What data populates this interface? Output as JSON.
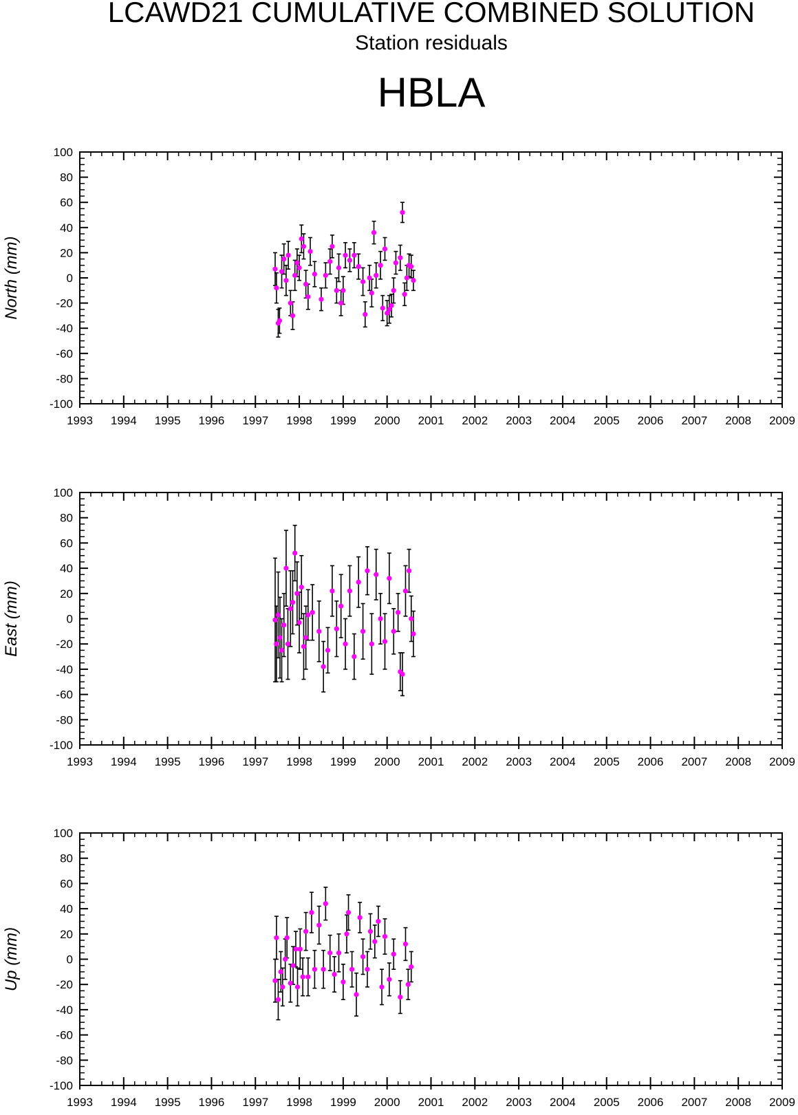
{
  "header": {
    "title": "LCAWD21 CUMULATIVE COMBINED SOLUTION",
    "subtitle": "Station residuals",
    "station": "HBLA"
  },
  "colors": {
    "point": "#ff00ff",
    "errorbar": "#000000",
    "axis": "#000000"
  },
  "chart_data": [
    {
      "type": "scatter",
      "name": "north",
      "ylabel": "North (mm)",
      "xlim": [
        1993,
        2009
      ],
      "ylim": [
        -100,
        100
      ],
      "xticks": [
        "1993",
        "1994",
        "1995",
        "1996",
        "1997",
        "1998",
        "1999",
        "2000",
        "2001",
        "2002",
        "2003",
        "2004",
        "2005",
        "2006",
        "2007",
        "2008",
        "2009"
      ],
      "yticks": [
        "100",
        "80",
        "60",
        "40",
        "20",
        "0",
        "-20",
        "-40",
        "-60",
        "-80",
        "-100"
      ],
      "points": [
        [
          1997.45,
          7,
          13
        ],
        [
          1997.48,
          -8,
          12
        ],
        [
          1997.52,
          -36,
          11
        ],
        [
          1997.55,
          -34,
          10
        ],
        [
          1997.6,
          5,
          13
        ],
        [
          1997.65,
          15,
          12
        ],
        [
          1997.7,
          -2,
          12
        ],
        [
          1997.75,
          18,
          11
        ],
        [
          1997.8,
          -20,
          10
        ],
        [
          1997.85,
          -30,
          11
        ],
        [
          1997.9,
          2,
          12
        ],
        [
          1997.95,
          12,
          11
        ],
        [
          1998.0,
          8,
          10
        ],
        [
          1998.05,
          31,
          11
        ],
        [
          1998.1,
          25,
          10
        ],
        [
          1998.15,
          -5,
          11
        ],
        [
          1998.2,
          -15,
          10
        ],
        [
          1998.25,
          21,
          11
        ],
        [
          1998.35,
          3,
          10
        ],
        [
          1998.5,
          -17,
          9
        ],
        [
          1998.6,
          2,
          10
        ],
        [
          1998.7,
          13,
          10
        ],
        [
          1998.75,
          25,
          9
        ],
        [
          1998.85,
          -10,
          10
        ],
        [
          1998.9,
          8,
          11
        ],
        [
          1998.95,
          -20,
          10
        ],
        [
          1999.0,
          -10,
          11
        ],
        [
          1999.05,
          18,
          10
        ],
        [
          1999.15,
          14,
          9
        ],
        [
          1999.25,
          18,
          10
        ],
        [
          1999.35,
          9,
          10
        ],
        [
          1999.45,
          -3,
          11
        ],
        [
          1999.5,
          -29,
          10
        ],
        [
          1999.6,
          0,
          10
        ],
        [
          1999.65,
          -12,
          11
        ],
        [
          1999.7,
          36,
          9
        ],
        [
          1999.75,
          2,
          10
        ],
        [
          1999.85,
          10,
          11
        ],
        [
          1999.9,
          -24,
          10
        ],
        [
          1999.95,
          23,
          9
        ],
        [
          2000.0,
          -28,
          10
        ],
        [
          2000.05,
          -25,
          11
        ],
        [
          2000.1,
          -22,
          9
        ],
        [
          2000.15,
          -10,
          10
        ],
        [
          2000.2,
          12,
          9
        ],
        [
          2000.3,
          16,
          10
        ],
        [
          2000.35,
          52,
          8
        ],
        [
          2000.4,
          -13,
          9
        ],
        [
          2000.45,
          0,
          10
        ],
        [
          2000.5,
          10,
          9
        ],
        [
          2000.55,
          9,
          9
        ],
        [
          2000.6,
          -2,
          8
        ]
      ]
    },
    {
      "type": "scatter",
      "name": "east",
      "ylabel": "East (mm)",
      "xlim": [
        1993,
        2009
      ],
      "ylim": [
        -100,
        100
      ],
      "xticks": [
        "1993",
        "1994",
        "1995",
        "1996",
        "1997",
        "1998",
        "1999",
        "2000",
        "2001",
        "2002",
        "2003",
        "2004",
        "2005",
        "2006",
        "2007",
        "2008",
        "2009"
      ],
      "yticks": [
        "100",
        "80",
        "60",
        "40",
        "20",
        "0",
        "-20",
        "-40",
        "-60",
        "-80",
        "-100"
      ],
      "points": [
        [
          1997.45,
          -1,
          49
        ],
        [
          1997.48,
          -20,
          30
        ],
        [
          1997.52,
          3,
          34
        ],
        [
          1997.56,
          -15,
          32
        ],
        [
          1997.6,
          -25,
          25
        ],
        [
          1997.65,
          -5,
          25
        ],
        [
          1997.7,
          40,
          30
        ],
        [
          1997.74,
          -20,
          28
        ],
        [
          1997.8,
          8,
          30
        ],
        [
          1997.85,
          13,
          25
        ],
        [
          1997.9,
          52,
          22
        ],
        [
          1997.95,
          20,
          25
        ],
        [
          1998.0,
          -3,
          24
        ],
        [
          1998.05,
          25,
          25
        ],
        [
          1998.1,
          -22,
          26
        ],
        [
          1998.15,
          -15,
          25
        ],
        [
          1998.2,
          3,
          20
        ],
        [
          1998.3,
          5,
          22
        ],
        [
          1998.45,
          -10,
          24
        ],
        [
          1998.55,
          -38,
          20
        ],
        [
          1998.65,
          -25,
          18
        ],
        [
          1998.75,
          22,
          20
        ],
        [
          1998.85,
          -8,
          22
        ],
        [
          1998.95,
          10,
          25
        ],
        [
          1999.05,
          -20,
          20
        ],
        [
          1999.15,
          22,
          20
        ],
        [
          1999.25,
          -30,
          18
        ],
        [
          1999.35,
          29,
          20
        ],
        [
          1999.45,
          -10,
          22
        ],
        [
          1999.55,
          38,
          19
        ],
        [
          1999.65,
          -20,
          24
        ],
        [
          1999.75,
          35,
          20
        ],
        [
          1999.85,
          0,
          20
        ],
        [
          1999.95,
          -18,
          22
        ],
        [
          2000.05,
          32,
          20
        ],
        [
          2000.15,
          -10,
          18
        ],
        [
          2000.25,
          5,
          15
        ],
        [
          2000.3,
          -42,
          15
        ],
        [
          2000.35,
          -44,
          17
        ],
        [
          2000.42,
          22,
          20
        ],
        [
          2000.5,
          38,
          17
        ],
        [
          2000.55,
          0,
          18
        ],
        [
          2000.6,
          -12,
          18
        ]
      ]
    },
    {
      "type": "scatter",
      "name": "up",
      "ylabel": "Up (mm)",
      "xlim": [
        1993,
        2009
      ],
      "ylim": [
        -100,
        100
      ],
      "xticks": [
        "1993",
        "1994",
        "1995",
        "1996",
        "1997",
        "1998",
        "1999",
        "2000",
        "2001",
        "2002",
        "2003",
        "2004",
        "2005",
        "2006",
        "2007",
        "2008",
        "2009"
      ],
      "yticks": [
        "100",
        "80",
        "60",
        "40",
        "20",
        "0",
        "-20",
        "-40",
        "-60",
        "-80",
        "-100"
      ],
      "points": [
        [
          1997.45,
          -17,
          17
        ],
        [
          1997.48,
          17,
          17
        ],
        [
          1997.52,
          -32,
          16
        ],
        [
          1997.58,
          -10,
          16
        ],
        [
          1997.62,
          -22,
          15
        ],
        [
          1997.68,
          0,
          16
        ],
        [
          1997.72,
          17,
          16
        ],
        [
          1997.8,
          -19,
          15
        ],
        [
          1997.86,
          -5,
          15
        ],
        [
          1997.92,
          8,
          14
        ],
        [
          1997.96,
          -22,
          15
        ],
        [
          1998.02,
          8,
          16
        ],
        [
          1998.08,
          -14,
          15
        ],
        [
          1998.15,
          22,
          15
        ],
        [
          1998.2,
          -14,
          15
        ],
        [
          1998.28,
          37,
          16
        ],
        [
          1998.35,
          -8,
          15
        ],
        [
          1998.45,
          27,
          15
        ],
        [
          1998.55,
          -8,
          15
        ],
        [
          1998.6,
          44,
          13
        ],
        [
          1998.7,
          5,
          14
        ],
        [
          1998.8,
          -12,
          14
        ],
        [
          1998.9,
          5,
          15
        ],
        [
          1999.0,
          -18,
          14
        ],
        [
          1999.08,
          20,
          15
        ],
        [
          1999.12,
          37,
          14
        ],
        [
          1999.2,
          -8,
          14
        ],
        [
          1999.3,
          -28,
          17
        ],
        [
          1999.38,
          33,
          12
        ],
        [
          1999.45,
          2,
          14
        ],
        [
          1999.55,
          -8,
          14
        ],
        [
          1999.62,
          22,
          14
        ],
        [
          1999.72,
          14,
          13
        ],
        [
          1999.8,
          30,
          12
        ],
        [
          1999.88,
          -22,
          14
        ],
        [
          1999.95,
          18,
          14
        ],
        [
          2000.05,
          -16,
          13
        ],
        [
          2000.15,
          4,
          12
        ],
        [
          2000.3,
          -30,
          13
        ],
        [
          2000.42,
          12,
          13
        ],
        [
          2000.48,
          -20,
          12
        ],
        [
          2000.55,
          -6,
          12
        ]
      ]
    }
  ]
}
